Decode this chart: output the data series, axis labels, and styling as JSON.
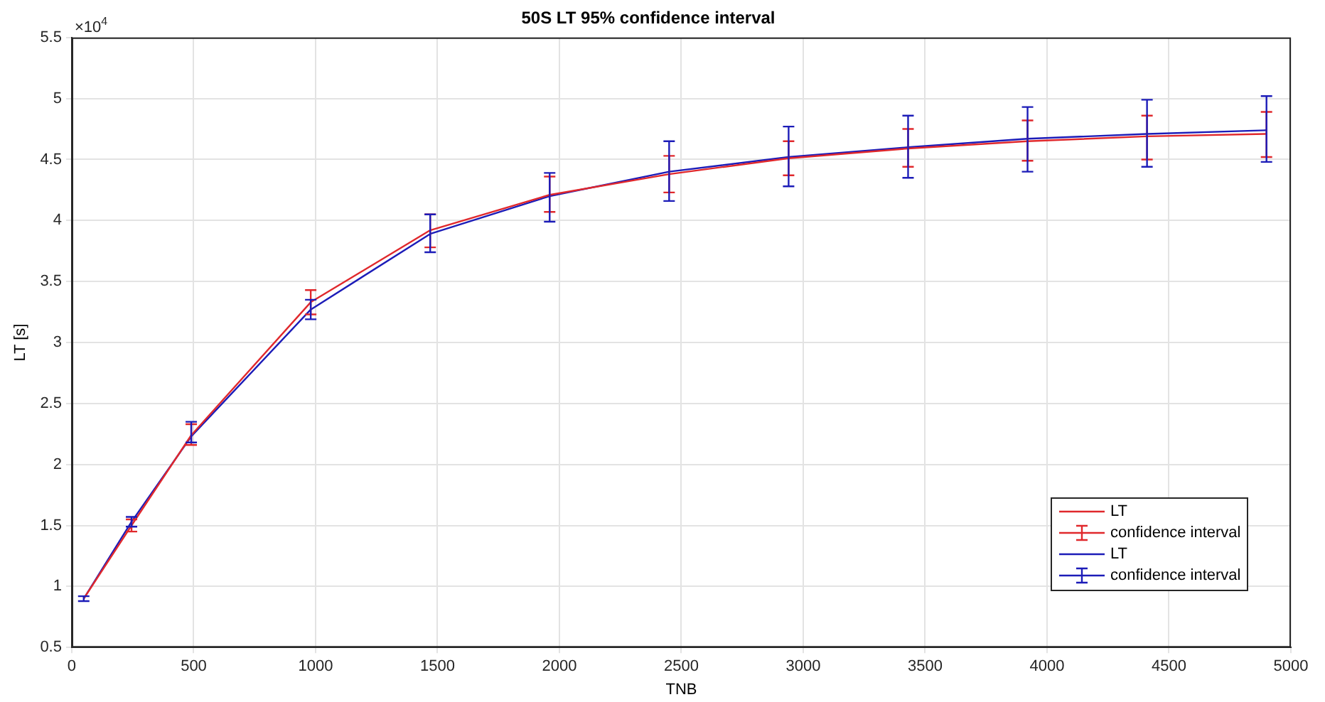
{
  "chart_data": {
    "type": "line",
    "title": "50S LT 95% confidence interval",
    "xlabel": "TNB",
    "ylabel": "LT [s]",
    "x": [
      49,
      245,
      490,
      980,
      1470,
      1960,
      2450,
      2940,
      3430,
      3920,
      4410,
      4900
    ],
    "xlim": [
      0,
      5000
    ],
    "xticks": [
      0,
      500,
      1000,
      1500,
      2000,
      2500,
      3000,
      3500,
      4000,
      4500,
      5000
    ],
    "ylim": [
      0.5,
      5.5
    ],
    "yticks": [
      0.5,
      1,
      1.5,
      2,
      2.5,
      3,
      3.5,
      4,
      4.5,
      5,
      5.5
    ],
    "grid": true,
    "legend": "bottom right",
    "line_style": "solid",
    "annotations": [
      "×10$^{4}$",
      "confidence interval",
      "confidence interval"
    ],
    "series": [
      {
        "name": "LT",
        "color": "#e0282c",
        "values": [
          0.9,
          1.5,
          2.24,
          3.33,
          3.92,
          4.21,
          4.38,
          4.51,
          4.59,
          4.65,
          4.69,
          4.71
        ],
        "errors": [
          null,
          [
            1.45,
            1.55
          ],
          [
            2.16,
            2.33
          ],
          [
            3.23,
            3.43
          ],
          [
            3.78,
            4.05
          ],
          [
            4.07,
            4.36
          ],
          [
            4.23,
            4.53
          ],
          [
            4.37,
            4.65
          ],
          [
            4.44,
            4.75
          ],
          [
            4.49,
            4.82
          ],
          [
            4.5,
            4.86
          ],
          [
            4.52,
            4.89
          ]
        ]
      },
      {
        "name": "LT",
        "color": "#1c1cb8",
        "values": [
          0.9,
          1.53,
          2.23,
          3.27,
          3.89,
          4.2,
          4.4,
          4.52,
          4.6,
          4.67,
          4.71,
          4.74
        ],
        "errors": [
          [
            0.88,
            0.92
          ],
          [
            1.49,
            1.57
          ],
          [
            2.18,
            2.35
          ],
          [
            3.19,
            3.35
          ],
          [
            3.74,
            4.05
          ],
          [
            3.99,
            4.39
          ],
          [
            4.16,
            4.65
          ],
          [
            4.28,
            4.77
          ],
          [
            4.35,
            4.86
          ],
          [
            4.4,
            4.93
          ],
          [
            4.44,
            4.99
          ],
          [
            4.48,
            5.02
          ]
        ]
      }
    ]
  }
}
